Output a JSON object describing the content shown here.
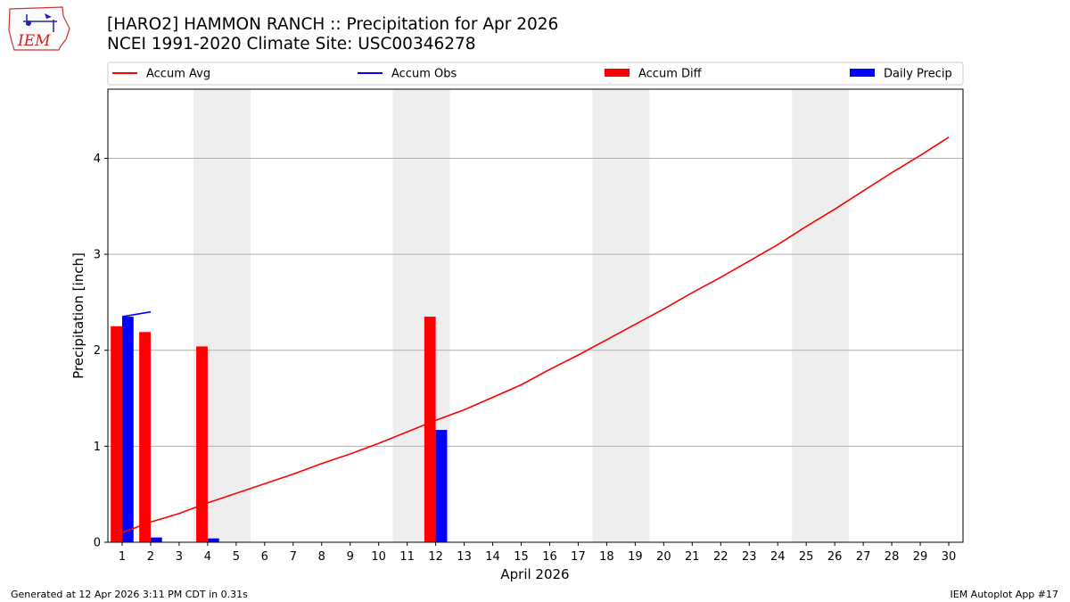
{
  "header": {
    "title_line1": "[HARO2] HAMMON RANCH :: Precipitation for Apr 2026",
    "title_line2": "NCEI 1991-2020 Climate Site: USC00346278"
  },
  "logo": {
    "text": "IEM",
    "icon": "iowa-state-outline-weather-icon"
  },
  "footer": {
    "generated": "Generated at 12 Apr 2026 3:11 PM CDT in 0.31s",
    "app": "IEM Autoplot App #17"
  },
  "colors": {
    "avg": "#ff0000",
    "obs": "#0000ff",
    "diff": "#ff0000",
    "daily": "#0000ff",
    "weekend_band": "#eeeeee",
    "grid": "#b0b0b0"
  },
  "chart_data": {
    "type": "bar",
    "xlabel": "April 2026",
    "ylabel": "Precipitation [inch]",
    "xlim": [
      0.5,
      30.5
    ],
    "ylim": [
      0,
      4.72
    ],
    "yticks": [
      0,
      1,
      2,
      3,
      4
    ],
    "x": [
      1,
      2,
      3,
      4,
      5,
      6,
      7,
      8,
      9,
      10,
      11,
      12,
      13,
      14,
      15,
      16,
      17,
      18,
      19,
      20,
      21,
      22,
      23,
      24,
      25,
      26,
      27,
      28,
      29,
      30
    ],
    "grid": "y",
    "legend": {
      "placement": "top",
      "entries": [
        "Accum Avg",
        "Accum Obs",
        "Accum Diff",
        "Daily Precip"
      ]
    },
    "weekend_bands": [
      [
        3.5,
        5.5
      ],
      [
        10.5,
        12.5
      ],
      [
        17.5,
        19.5
      ],
      [
        24.5,
        26.5
      ]
    ],
    "series": [
      {
        "name": "Accum Avg",
        "kind": "line",
        "x": [
          1,
          2,
          3,
          4,
          5,
          6,
          7,
          8,
          9,
          10,
          11,
          12,
          13,
          14,
          15,
          16,
          17,
          18,
          19,
          20,
          21,
          22,
          23,
          24,
          25,
          26,
          27,
          28,
          29,
          30
        ],
        "values": [
          0.1,
          0.21,
          0.3,
          0.41,
          0.51,
          0.61,
          0.71,
          0.82,
          0.92,
          1.03,
          1.15,
          1.27,
          1.38,
          1.51,
          1.64,
          1.8,
          1.95,
          2.11,
          2.27,
          2.43,
          2.6,
          2.76,
          2.93,
          3.1,
          3.29,
          3.47,
          3.66,
          3.85,
          4.03,
          4.22
        ]
      },
      {
        "name": "Accum Obs",
        "kind": "line",
        "x": [
          1,
          2
        ],
        "values": [
          2.35,
          2.4
        ]
      },
      {
        "name": "Accum Diff",
        "kind": "bar",
        "x": [
          1,
          2,
          4,
          12
        ],
        "values": [
          2.25,
          2.19,
          2.04,
          2.35
        ]
      },
      {
        "name": "Daily Precip",
        "kind": "bar",
        "x": [
          1,
          2,
          4,
          12
        ],
        "values": [
          2.35,
          0.05,
          0.04,
          1.17
        ]
      }
    ]
  }
}
